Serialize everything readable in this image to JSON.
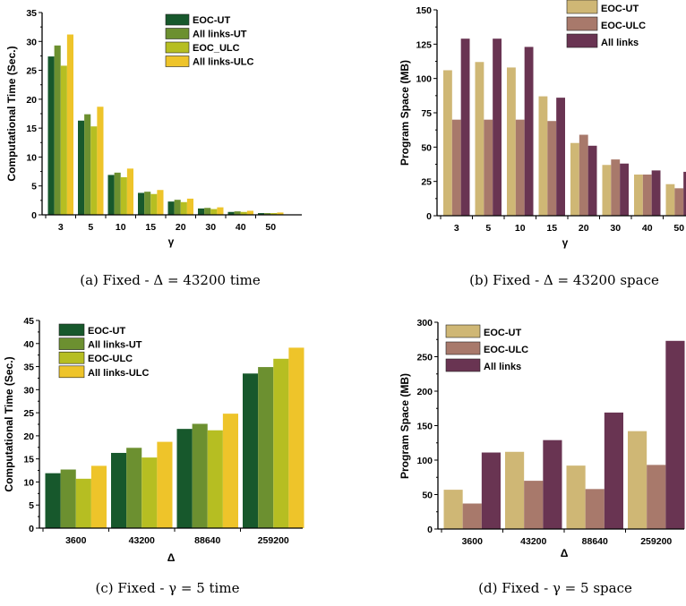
{
  "colors": {
    "eoc_ut": "#17582c",
    "all_links_ut": "#6c9030",
    "eoc_ulc": "#b6be22",
    "all_links_ulc": "#eec42a",
    "space_eoc_ut": "#cfb775",
    "space_eoc_ulc": "#a8796b",
    "space_all_links": "#693452"
  },
  "chart_data": [
    {
      "type": "bar",
      "caption": "(a) Fixed - Δ = 43200 time",
      "xlabel": "γ",
      "ylabel": "Computational Time (Sec.)",
      "ylim": [
        0,
        35
      ],
      "yticks": [
        0,
        5,
        10,
        15,
        20,
        25,
        30,
        35
      ],
      "categories": [
        "3",
        "5",
        "10",
        "15",
        "20",
        "30",
        "40",
        "50"
      ],
      "legend_position": "top-right",
      "series": [
        {
          "name": "EOC-UT",
          "color": "#17582c",
          "values": [
            27.4,
            16.3,
            6.9,
            3.8,
            2.3,
            1.1,
            0.5,
            0.3
          ]
        },
        {
          "name": "All links-UT",
          "color": "#6c9030",
          "values": [
            29.3,
            17.4,
            7.3,
            4.0,
            2.6,
            1.2,
            0.6,
            0.3
          ]
        },
        {
          "name": "EOC_ULC",
          "color": "#b6be22",
          "values": [
            25.8,
            15.3,
            6.5,
            3.6,
            2.2,
            1.0,
            0.5,
            0.3
          ]
        },
        {
          "name": "All links-ULC",
          "color": "#eec42a",
          "values": [
            31.2,
            18.7,
            8.0,
            4.3,
            2.8,
            1.3,
            0.7,
            0.4
          ]
        }
      ]
    },
    {
      "type": "bar",
      "caption": "(b) Fixed - Δ = 43200 space",
      "xlabel": "γ",
      "ylabel": "Program Space (MB)",
      "ylim": [
        0,
        150
      ],
      "yticks": [
        0,
        25,
        50,
        75,
        100,
        125,
        150
      ],
      "categories": [
        "3",
        "5",
        "10",
        "15",
        "20",
        "30",
        "40",
        "50"
      ],
      "legend_position": "top-right",
      "series": [
        {
          "name": "EOC-UT",
          "color": "#cfb775",
          "values": [
            106,
            112,
            108,
            87,
            53,
            37,
            30,
            23
          ]
        },
        {
          "name": "EOC-ULC",
          "color": "#a8796b",
          "values": [
            70,
            70,
            70,
            69,
            59,
            41,
            30,
            20
          ]
        },
        {
          "name": "All links",
          "color": "#693452",
          "values": [
            129,
            129,
            123,
            86,
            51,
            38,
            33,
            32
          ]
        }
      ]
    },
    {
      "type": "bar",
      "caption": "(c) Fixed - γ = 5 time",
      "xlabel": "Δ",
      "ylabel": "Computational Time (Sec.)",
      "ylim": [
        0,
        45
      ],
      "yticks": [
        0,
        5,
        10,
        15,
        20,
        25,
        30,
        35,
        40,
        45
      ],
      "categories": [
        "3600",
        "43200",
        "88640",
        "259200"
      ],
      "legend_position": "top-left",
      "series": [
        {
          "name": "EOC-UT",
          "color": "#17582c",
          "values": [
            11.9,
            16.3,
            21.5,
            33.5
          ]
        },
        {
          "name": "All links-UT",
          "color": "#6c9030",
          "values": [
            12.7,
            17.4,
            22.6,
            34.9
          ]
        },
        {
          "name": "EOC-ULC",
          "color": "#b6be22",
          "values": [
            10.7,
            15.3,
            21.2,
            36.7
          ]
        },
        {
          "name": "All links-ULC",
          "color": "#eec42a",
          "values": [
            13.5,
            18.7,
            24.8,
            39.1
          ]
        }
      ]
    },
    {
      "type": "bar",
      "caption": "(d) Fixed - γ = 5 space",
      "xlabel": "Δ",
      "ylabel": "Program Space (MB)",
      "ylim": [
        0,
        300
      ],
      "yticks": [
        0,
        50,
        100,
        150,
        200,
        250,
        300
      ],
      "categories": [
        "3600",
        "43200",
        "88640",
        "259200"
      ],
      "legend_position": "top-left",
      "series": [
        {
          "name": "EOC-UT",
          "color": "#cfb775",
          "values": [
            57,
            112,
            92,
            142
          ]
        },
        {
          "name": "EOC-ULC",
          "color": "#a8796b",
          "values": [
            37,
            70,
            58,
            93
          ]
        },
        {
          "name": "All links",
          "color": "#693452",
          "values": [
            111,
            129,
            169,
            273
          ]
        }
      ]
    }
  ]
}
